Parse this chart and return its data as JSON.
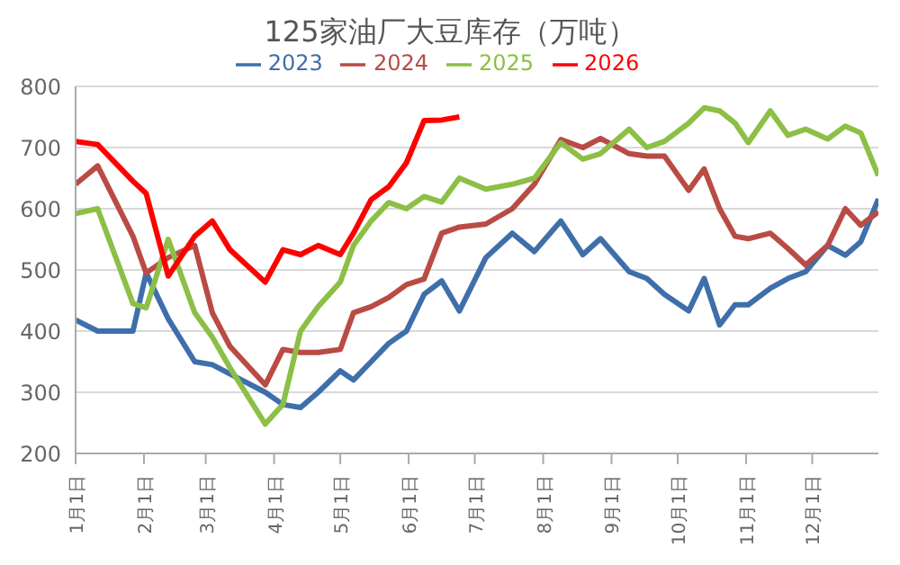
{
  "chart_data": {
    "type": "line",
    "title": "125家油厂大豆库存（万吨）",
    "x": [
      "--01-01",
      "--01-11",
      "--01-27",
      "--02-02",
      "--02-12",
      "--02-24",
      "--03-04",
      "--03-12",
      "--03-28",
      "--04-05",
      "--04-13",
      "--04-21",
      "--05-01",
      "--05-07",
      "--05-15",
      "--05-23",
      "--05-31",
      "--06-08",
      "--06-16",
      "--06-24",
      "--07-06",
      "--07-18",
      "--07-28",
      "--08-09",
      "--08-19",
      "--08-27",
      "--09-09",
      "--09-17",
      "--09-25",
      "--10-06",
      "--10-13",
      "--10-20",
      "--10-27",
      "--11-02",
      "--11-12",
      "--11-20",
      "--11-28",
      "--12-08",
      "--12-16",
      "--12-23",
      "--12-31"
    ],
    "series": [
      {
        "name": "2023",
        "color": "#3f6fab",
        "values": [
          418,
          400,
          400,
          495,
          420,
          350,
          345,
          330,
          300,
          280,
          275,
          300,
          335,
          320,
          350,
          380,
          400,
          460,
          482,
          433,
          520,
          560,
          530,
          580,
          525,
          551,
          497,
          486,
          460,
          433,
          486,
          410,
          443,
          443,
          470,
          486,
          497,
          540,
          524,
          546,
          616
        ]
      },
      {
        "name": "2024",
        "color": "#b94b45",
        "values": [
          640,
          670,
          555,
          495,
          520,
          540,
          430,
          375,
          312,
          370,
          365,
          365,
          370,
          430,
          440,
          455,
          476,
          485,
          560,
          570,
          575,
          600,
          640,
          713,
          700,
          715,
          690,
          686,
          686,
          630,
          665,
          600,
          555,
          551,
          560,
          535,
          508,
          540,
          600,
          573,
          595
        ]
      },
      {
        "name": "2025",
        "color": "#8cbf45",
        "values": [
          592,
          600,
          445,
          438,
          550,
          430,
          390,
          340,
          248,
          280,
          400,
          440,
          480,
          540,
          580,
          610,
          600,
          620,
          611,
          650,
          632,
          640,
          650,
          708,
          681,
          690,
          730,
          700,
          710,
          740,
          765,
          760,
          740,
          708,
          760,
          720,
          730,
          714,
          735,
          724,
          654
        ]
      },
      {
        "name": "2026",
        "color": "#ff0000",
        "values": [
          710,
          705,
          645,
          625,
          490,
          555,
          580,
          533,
          480,
          533,
          525,
          540,
          525,
          560,
          615,
          636,
          675,
          744,
          745,
          750,
          null,
          null,
          null,
          null,
          null,
          null,
          null,
          null,
          null,
          null,
          null,
          null,
          null,
          null,
          null,
          null,
          null,
          null,
          null,
          null,
          null
        ]
      }
    ],
    "xlim": [
      "--01-01",
      "--12-31"
    ],
    "xticks": [
      {
        "value": "--01-01",
        "label": "1月1日"
      },
      {
        "value": "--02-01",
        "label": "2月1日"
      },
      {
        "value": "--03-01",
        "label": "3月1日"
      },
      {
        "value": "--04-01",
        "label": "4月1日"
      },
      {
        "value": "--05-01",
        "label": "5月1日"
      },
      {
        "value": "--06-01",
        "label": "6月1日"
      },
      {
        "value": "--07-01",
        "label": "7月1日"
      },
      {
        "value": "--08-01",
        "label": "8月1日"
      },
      {
        "value": "--09-01",
        "label": "9月1日"
      },
      {
        "value": "--10-01",
        "label": "10月1日"
      },
      {
        "value": "--11-01",
        "label": "11月1日"
      },
      {
        "value": "--12-01",
        "label": "12月1日"
      }
    ],
    "ylim": [
      200,
      800
    ],
    "yticks": [
      200,
      300,
      400,
      500,
      600,
      700,
      800
    ],
    "grid": "y",
    "legend": "top",
    "marker": "none",
    "line_style": "solid"
  }
}
